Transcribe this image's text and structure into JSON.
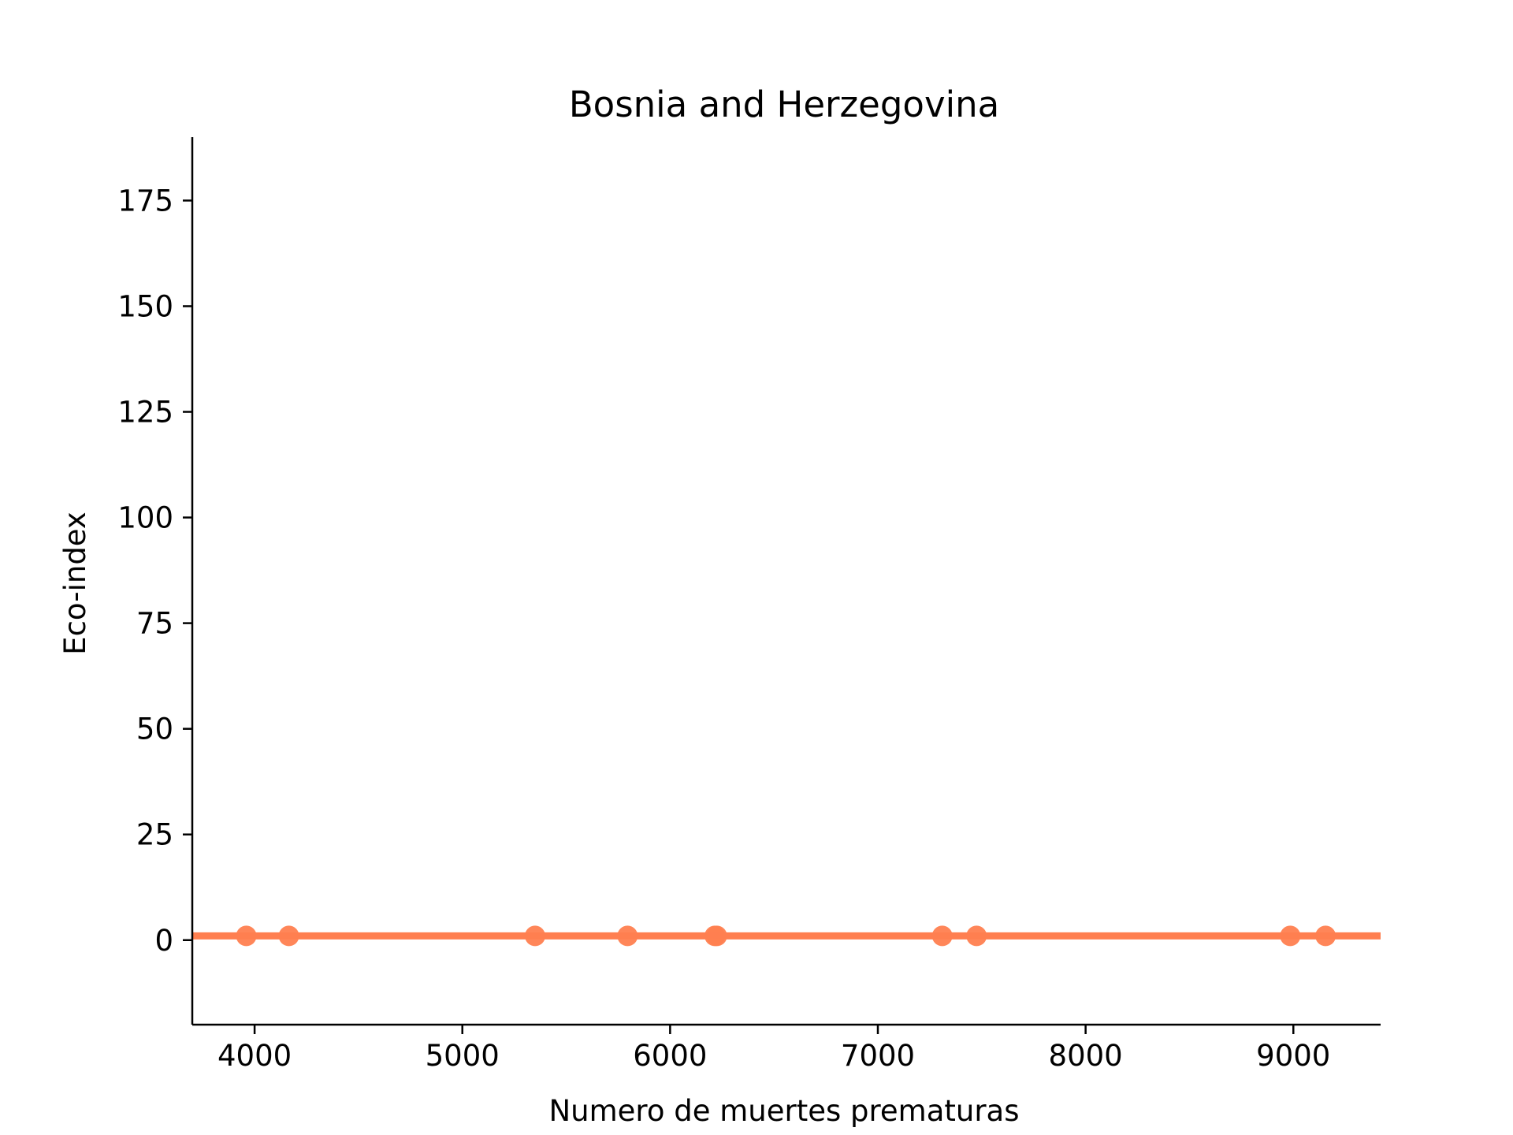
{
  "chart_data": {
    "type": "scatter",
    "title": "Bosnia and Herzegovina",
    "xlabel": "Numero de muertes prematuras",
    "ylabel": "Eco-index",
    "xlim": [
      3700,
      9420
    ],
    "ylim": [
      -20,
      190
    ],
    "x_ticks": [
      {
        "value": 4000,
        "label": "4000"
      },
      {
        "value": 5000,
        "label": "5000"
      },
      {
        "value": 6000,
        "label": "6000"
      },
      {
        "value": 7000,
        "label": "7000"
      },
      {
        "value": 8000,
        "label": "8000"
      },
      {
        "value": 9000,
        "label": "9000"
      }
    ],
    "y_ticks": [
      {
        "value": 0,
        "label": "0"
      },
      {
        "value": 25,
        "label": "25"
      },
      {
        "value": 50,
        "label": "50"
      },
      {
        "value": 75,
        "label": "75"
      },
      {
        "value": 100,
        "label": "100"
      },
      {
        "value": 125,
        "label": "125"
      },
      {
        "value": 150,
        "label": "150"
      },
      {
        "value": 175,
        "label": "175"
      }
    ],
    "series": [
      {
        "color": "#ff7f50",
        "points": [
          {
            "x": 3960,
            "y": 1
          },
          {
            "x": 4165,
            "y": 1
          },
          {
            "x": 5350,
            "y": 1
          },
          {
            "x": 5795,
            "y": 1
          },
          {
            "x": 6215,
            "y": 1
          },
          {
            "x": 6225,
            "y": 1
          },
          {
            "x": 7310,
            "y": 1
          },
          {
            "x": 7475,
            "y": 1
          },
          {
            "x": 8985,
            "y": 1
          },
          {
            "x": 9155,
            "y": 1
          }
        ]
      }
    ],
    "fit_line": {
      "color": "#ff7f50",
      "y": 1
    },
    "grid": false,
    "spines": [
      "left",
      "bottom"
    ]
  }
}
